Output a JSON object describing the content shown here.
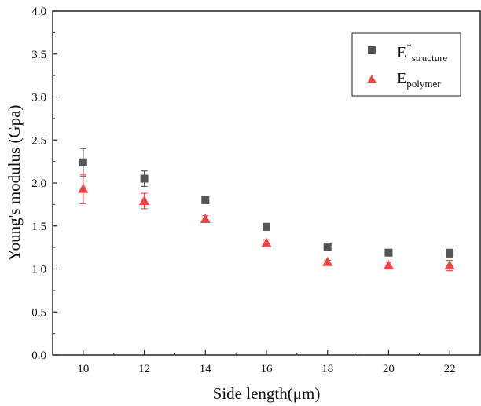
{
  "chart_data": {
    "type": "scatter",
    "xlabel": "Side length(μm)",
    "ylabel": "Young's modulus (Gpa)",
    "xlim": [
      9,
      23
    ],
    "ylim": [
      0.0,
      4.0
    ],
    "x_ticks": [
      "10",
      "12",
      "14",
      "16",
      "18",
      "20",
      "22"
    ],
    "y_ticks": [
      "0.0",
      "0.5",
      "1.0",
      "1.5",
      "2.0",
      "2.5",
      "3.0",
      "3.5",
      "4.0"
    ],
    "legend_position": "top-right",
    "grid": false,
    "series": [
      {
        "name_main": "E",
        "name_sup": "*",
        "name_sub": "structure",
        "marker": "square",
        "color": "#555555",
        "x": [
          10,
          12,
          14,
          16,
          18,
          20,
          22
        ],
        "y": [
          2.24,
          2.05,
          1.8,
          1.49,
          1.26,
          1.19,
          1.18
        ],
        "err": [
          0.16,
          0.09,
          0.03,
          0.04,
          0.02,
          0.03,
          0.05
        ]
      },
      {
        "name_main": "E",
        "name_sup": "",
        "name_sub": "polymer",
        "marker": "triangle",
        "color": "#f04545",
        "x": [
          10,
          12,
          14,
          16,
          18,
          20,
          22
        ],
        "y": [
          1.93,
          1.79,
          1.58,
          1.3,
          1.08,
          1.04,
          1.04
        ],
        "err": [
          0.17,
          0.09,
          0.04,
          0.04,
          0.02,
          0.04,
          0.06
        ]
      }
    ]
  }
}
